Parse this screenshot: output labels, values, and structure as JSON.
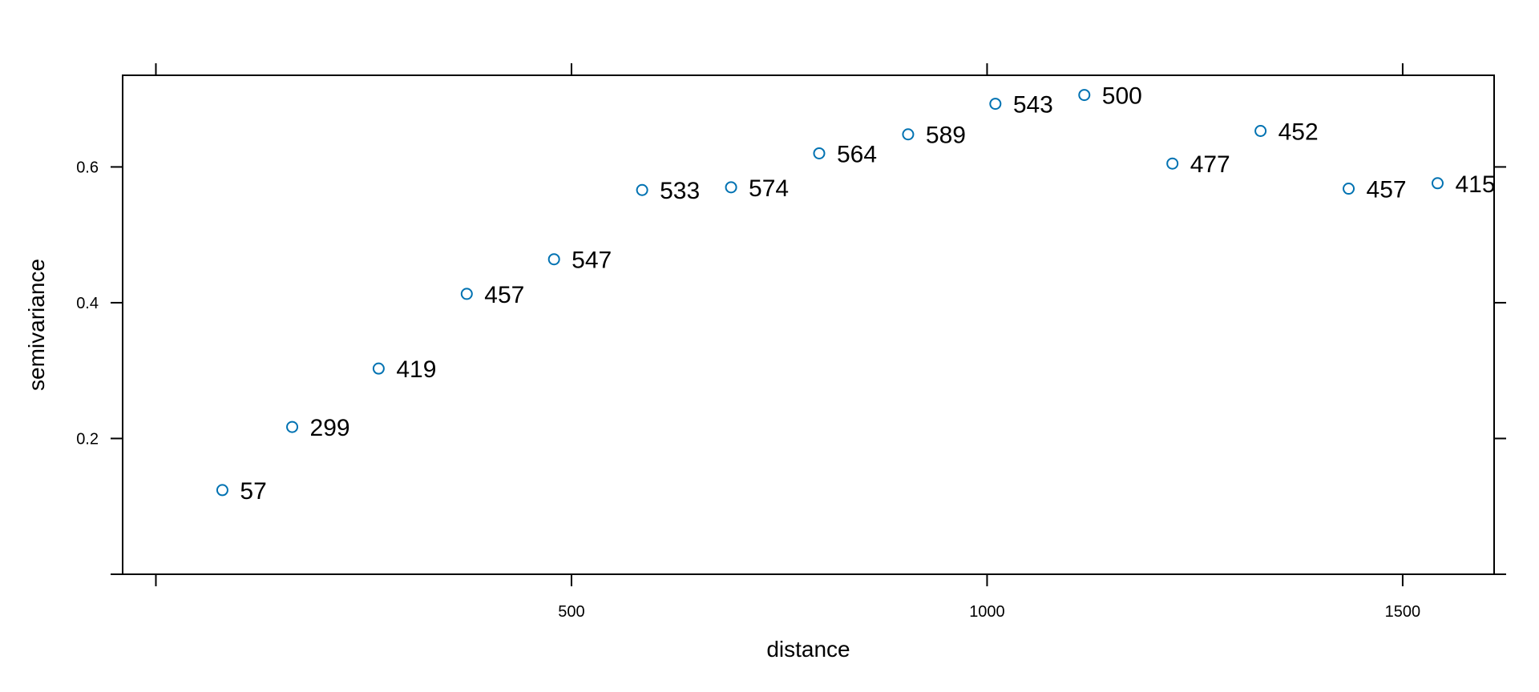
{
  "chart_data": {
    "type": "scatter",
    "title": "",
    "xlabel": "distance",
    "ylabel": "semivariance",
    "xlim": [
      -40,
      1610
    ],
    "ylim": [
      0,
      0.735
    ],
    "x_ticks": [
      0,
      500,
      1000,
      1500
    ],
    "x_tick_labels": [
      "",
      "500",
      "1000",
      "1500"
    ],
    "y_ticks": [
      0,
      0.2,
      0.4,
      0.6
    ],
    "y_tick_labels": [
      "",
      "0.2",
      "0.4",
      "0.6"
    ],
    "grid": false,
    "marker": "open-circle",
    "marker_color": "#0072b2",
    "points": [
      {
        "x": 80,
        "y": 0.124,
        "label": "57"
      },
      {
        "x": 164,
        "y": 0.217,
        "label": "299"
      },
      {
        "x": 268,
        "y": 0.303,
        "label": "419"
      },
      {
        "x": 374,
        "y": 0.413,
        "label": "457"
      },
      {
        "x": 479,
        "y": 0.464,
        "label": "547"
      },
      {
        "x": 585,
        "y": 0.566,
        "label": "533"
      },
      {
        "x": 692,
        "y": 0.57,
        "label": "574"
      },
      {
        "x": 798,
        "y": 0.62,
        "label": "564"
      },
      {
        "x": 905,
        "y": 0.648,
        "label": "589"
      },
      {
        "x": 1010,
        "y": 0.693,
        "label": "543"
      },
      {
        "x": 1117,
        "y": 0.706,
        "label": "500"
      },
      {
        "x": 1223,
        "y": 0.605,
        "label": "477"
      },
      {
        "x": 1329,
        "y": 0.653,
        "label": "452"
      },
      {
        "x": 1435,
        "y": 0.568,
        "label": "457"
      },
      {
        "x": 1542,
        "y": 0.576,
        "label": "415"
      }
    ]
  }
}
